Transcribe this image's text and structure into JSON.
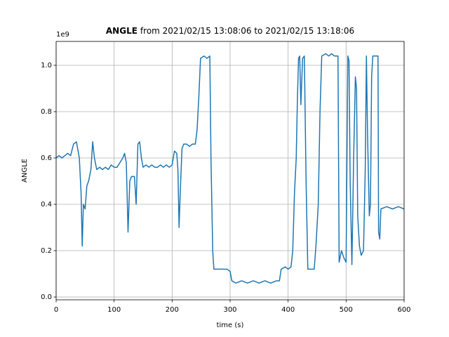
{
  "chart_data": {
    "type": "line",
    "title": [
      "ANGLE",
      "from 2021/02/15 13:08:06 to 2021/02/15 13:18:06"
    ],
    "xlabel": "time (s)",
    "ylabel": "ANGLE",
    "y_offset_label": "1e9",
    "xlim": [
      0,
      600
    ],
    "xticks": [
      0,
      100,
      200,
      300,
      400,
      500,
      600
    ],
    "ylim": [
      -0.012,
      1.103
    ],
    "yticks": [
      {
        "value": 0,
        "label": "0.0"
      },
      0.2,
      0.4,
      0.6,
      0.8,
      {
        "value": 1,
        "label": "1.0"
      }
    ],
    "grid": true,
    "series": [
      {
        "name": "ANGLE",
        "color": "#1f77b4",
        "x": [
          0,
          5,
          10,
          15,
          20,
          25,
          30,
          35,
          40,
          43,
          45,
          47,
          50,
          53,
          56,
          60,
          63,
          66,
          70,
          75,
          80,
          85,
          90,
          95,
          100,
          105,
          110,
          115,
          118,
          121,
          124,
          127,
          130,
          135,
          138,
          141,
          144,
          147,
          150,
          155,
          160,
          165,
          170,
          175,
          180,
          185,
          190,
          195,
          200,
          204,
          208,
          210,
          212,
          214,
          217,
          220,
          225,
          230,
          235,
          240,
          243,
          246,
          249,
          255,
          260,
          265,
          267,
          270,
          272,
          280,
          290,
          295,
          300,
          303,
          310,
          320,
          330,
          340,
          350,
          360,
          370,
          380,
          385,
          388,
          395,
          400,
          405,
          408,
          411,
          414,
          416,
          418,
          420,
          422,
          425,
          428,
          431,
          434,
          440,
          445,
          448,
          452,
          455,
          458,
          465,
          470,
          475,
          480,
          486,
          488,
          492,
          496,
          500,
          503,
          505,
          507,
          510,
          513,
          516,
          518,
          520,
          523,
          526,
          530,
          533,
          535,
          537,
          540,
          542,
          544,
          546,
          550,
          555,
          556,
          558,
          560,
          570,
          580,
          590,
          600
        ],
        "values": [
          0.6,
          0.61,
          0.6,
          0.61,
          0.62,
          0.61,
          0.66,
          0.67,
          0.6,
          0.45,
          0.22,
          0.4,
          0.38,
          0.48,
          0.5,
          0.55,
          0.67,
          0.6,
          0.55,
          0.56,
          0.55,
          0.56,
          0.55,
          0.57,
          0.56,
          0.56,
          0.58,
          0.6,
          0.62,
          0.58,
          0.28,
          0.5,
          0.52,
          0.52,
          0.4,
          0.66,
          0.67,
          0.6,
          0.56,
          0.57,
          0.56,
          0.57,
          0.56,
          0.56,
          0.57,
          0.56,
          0.57,
          0.56,
          0.57,
          0.63,
          0.62,
          0.55,
          0.3,
          0.45,
          0.64,
          0.66,
          0.66,
          0.65,
          0.66,
          0.66,
          0.72,
          0.86,
          1.03,
          1.04,
          1.03,
          1.04,
          0.6,
          0.2,
          0.12,
          0.12,
          0.12,
          0.12,
          0.11,
          0.07,
          0.06,
          0.07,
          0.06,
          0.07,
          0.06,
          0.07,
          0.06,
          0.07,
          0.07,
          0.12,
          0.13,
          0.12,
          0.13,
          0.2,
          0.45,
          0.6,
          0.85,
          1.03,
          1.04,
          0.83,
          1.03,
          1.04,
          0.5,
          0.12,
          0.12,
          0.12,
          0.22,
          0.4,
          0.8,
          1.04,
          1.05,
          1.04,
          1.05,
          1.04,
          1.04,
          0.15,
          0.2,
          0.17,
          0.15,
          1.04,
          1.02,
          0.5,
          0.14,
          0.6,
          0.95,
          0.9,
          0.35,
          0.22,
          0.18,
          0.2,
          0.55,
          1.04,
          0.7,
          0.35,
          0.4,
          0.95,
          1.04,
          1.04,
          1.04,
          0.28,
          0.25,
          0.38,
          0.39,
          0.38,
          0.39,
          0.38
        ]
      }
    ]
  }
}
